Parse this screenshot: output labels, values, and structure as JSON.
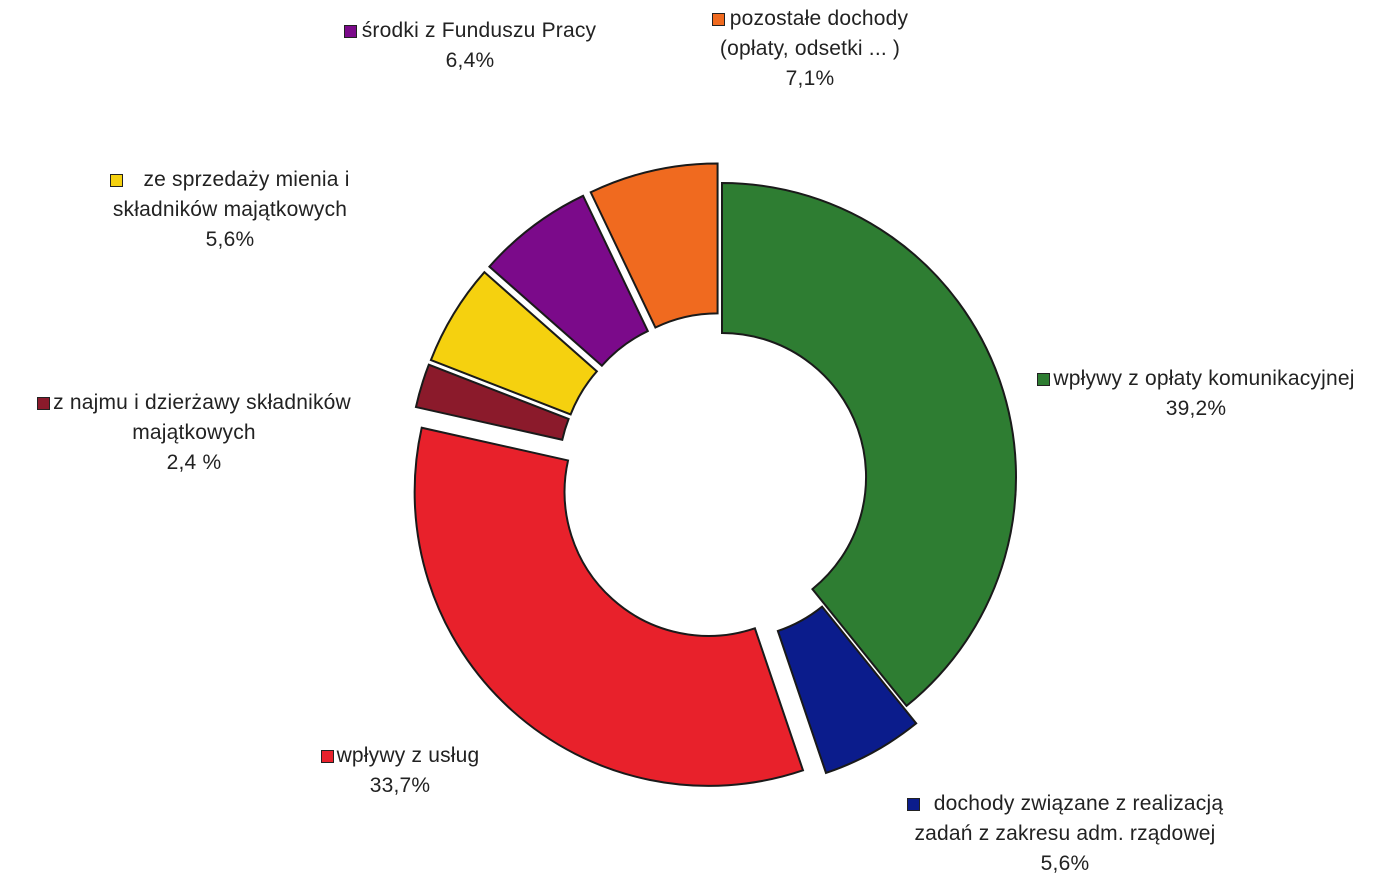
{
  "chart_data": {
    "type": "donut",
    "inner_radius_ratio": 0.49,
    "start_angle_deg": 0,
    "direction": "clockwise",
    "slices": [
      {
        "key": "oplata-komunikacyjna",
        "label": [
          "wpływy z opłaty komunikacyjnej"
        ],
        "value_text": "39,2%",
        "value": 39.2,
        "color": "#2e7d32",
        "exploded": false
      },
      {
        "key": "zadania-rzadowe",
        "label": [
          "dochody związane z realizacją",
          "zadań z zakresu adm. rządowej"
        ],
        "value_text": "5,6%",
        "value": 5.6,
        "color": "#0b1c8c",
        "exploded": true
      },
      {
        "key": "uslugi",
        "label": [
          "wpływy z usług"
        ],
        "value_text": "33,7%",
        "value": 33.7,
        "color": "#e8212b",
        "exploded": true
      },
      {
        "key": "najem",
        "label": [
          "z najmu i dzierżawy składników",
          "majątkowych"
        ],
        "value_text": "2,4 %",
        "value": 2.4,
        "color": "#8b1a2b",
        "exploded": true
      },
      {
        "key": "sprzedaz-mienia",
        "label": [
          "ze sprzedaży mienia i",
          "składników majątkowych"
        ],
        "value_text": "5,6%",
        "value": 5.6,
        "color": "#f5d10f",
        "exploded": true
      },
      {
        "key": "fundusz-pracy",
        "label": [
          "środki z Funduszu Pracy"
        ],
        "value_text": "6,4%",
        "value": 6.4,
        "color": "#7b0a8a",
        "exploded": true
      },
      {
        "key": "pozostale",
        "label": [
          "pozostałe dochody",
          "(opłaty, odsetki ... )"
        ],
        "value_text": "7,1%",
        "value": 7.1,
        "color": "#f06a1f",
        "exploded": true
      }
    ]
  }
}
